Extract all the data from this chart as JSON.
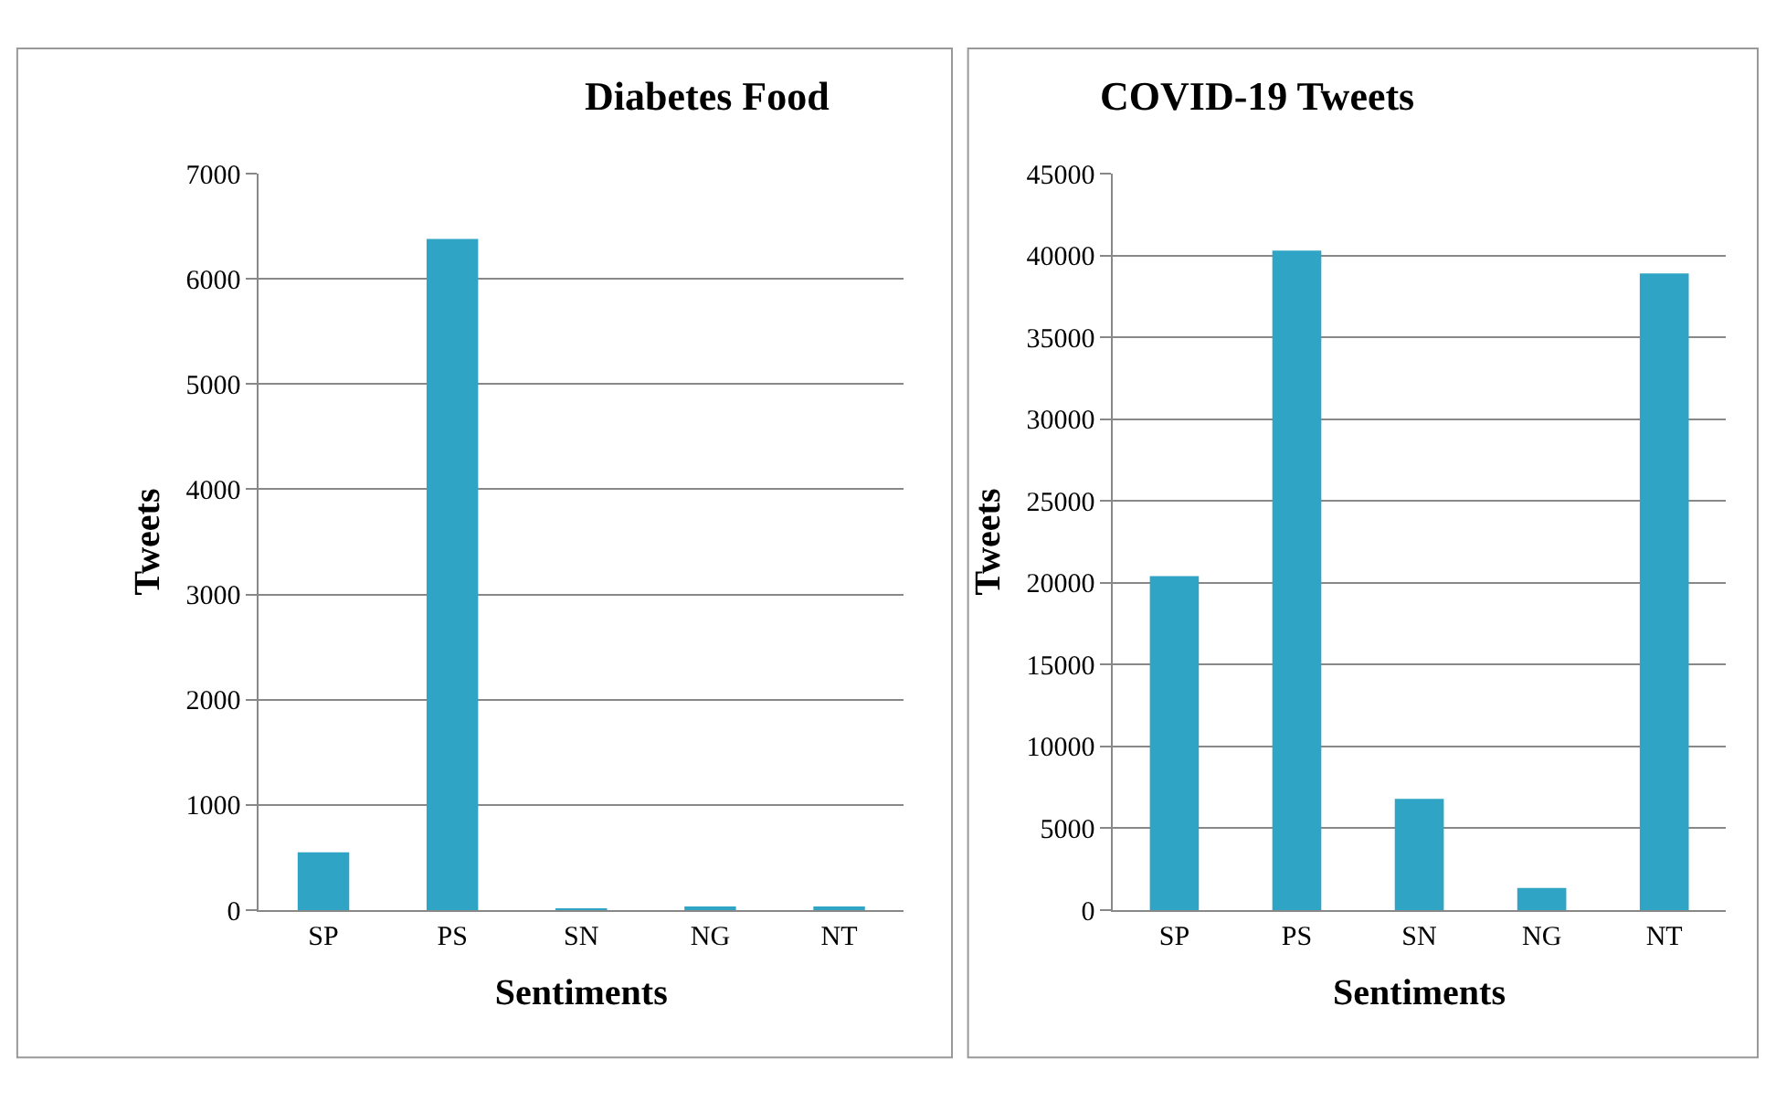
{
  "chart_data": [
    {
      "type": "bar",
      "title": "Diabetes Food",
      "xlabel": "Sentiments",
      "ylabel": "Tweets",
      "categories": [
        "SP",
        "PS",
        "SN",
        "NG",
        "NT"
      ],
      "values": [
        550,
        6380,
        10,
        30,
        30
      ],
      "color": "#2fa4c4",
      "ylim": [
        0,
        7000
      ],
      "yticks": [
        0,
        1000,
        2000,
        3000,
        4000,
        5000,
        6000,
        7000
      ],
      "grid": "y"
    },
    {
      "type": "bar",
      "title": "COVID-19 Tweets",
      "xlabel": "Sentiments",
      "ylabel": "Tweets",
      "categories": [
        "SP",
        "PS",
        "SN",
        "NG",
        "NT"
      ],
      "values": [
        20400,
        40300,
        6800,
        1350,
        38900
      ],
      "color": "#2fa4c4",
      "ylim": [
        0,
        45000
      ],
      "yticks": [
        0,
        5000,
        10000,
        15000,
        20000,
        25000,
        30000,
        35000,
        40000,
        45000
      ],
      "grid": "y"
    }
  ]
}
